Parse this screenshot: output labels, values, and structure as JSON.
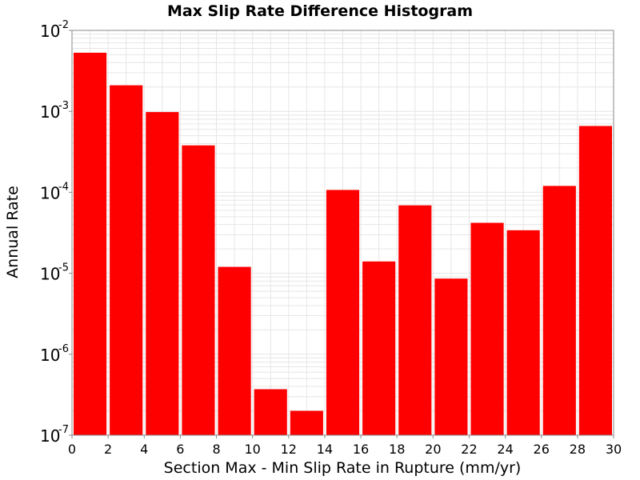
{
  "chart_data": {
    "type": "bar",
    "title": "Max Slip Rate Difference Histogram",
    "xlabel": "Section Max - Min Slip Rate in Rupture (mm/yr)",
    "ylabel": "Annual Rate",
    "xlim": [
      0,
      30
    ],
    "ylim": [
      1e-07,
      0.01
    ],
    "y_scale": "log",
    "grid": true,
    "x_ticks": [
      0,
      2,
      4,
      6,
      8,
      10,
      12,
      14,
      16,
      18,
      20,
      22,
      24,
      26,
      28,
      30
    ],
    "x_tick_labels": [
      "0",
      "2",
      "4",
      "6",
      "8",
      "10",
      "12",
      "14",
      "16",
      "18",
      "20",
      "22",
      "24",
      "26",
      "28",
      "30"
    ],
    "y_ticks": [
      {
        "value": 1e-07,
        "base": "10",
        "exp": "-7"
      },
      {
        "value": 1e-06,
        "base": "10",
        "exp": "-6"
      },
      {
        "value": 1e-05,
        "base": "10",
        "exp": "-5"
      },
      {
        "value": 0.0001,
        "base": "10",
        "exp": "-4"
      },
      {
        "value": 0.001,
        "base": "10",
        "exp": "-3"
      },
      {
        "value": 0.01,
        "base": "10",
        "exp": "-2"
      }
    ],
    "bin_width": 2,
    "bins": [
      {
        "x": 1,
        "value": 0.0053
      },
      {
        "x": 3,
        "value": 0.0021
      },
      {
        "x": 5,
        "value": 0.00098
      },
      {
        "x": 7,
        "value": 0.00038
      },
      {
        "x": 9,
        "value": 1.2e-05
      },
      {
        "x": 11,
        "value": 3.7e-07
      },
      {
        "x": 13,
        "value": 2e-07
      },
      {
        "x": 15,
        "value": 0.000107
      },
      {
        "x": 17,
        "value": 1.4e-05
      },
      {
        "x": 19,
        "value": 6.9e-05
      },
      {
        "x": 21,
        "value": 8.6e-06
      },
      {
        "x": 23,
        "value": 4.2e-05
      },
      {
        "x": 25,
        "value": 3.4e-05
      },
      {
        "x": 27,
        "value": 0.00012
      },
      {
        "x": 29,
        "value": 0.00066
      }
    ],
    "bar_color": "#ff0000",
    "grid_color": "#e6e6e6",
    "axis_color": "#888888"
  }
}
